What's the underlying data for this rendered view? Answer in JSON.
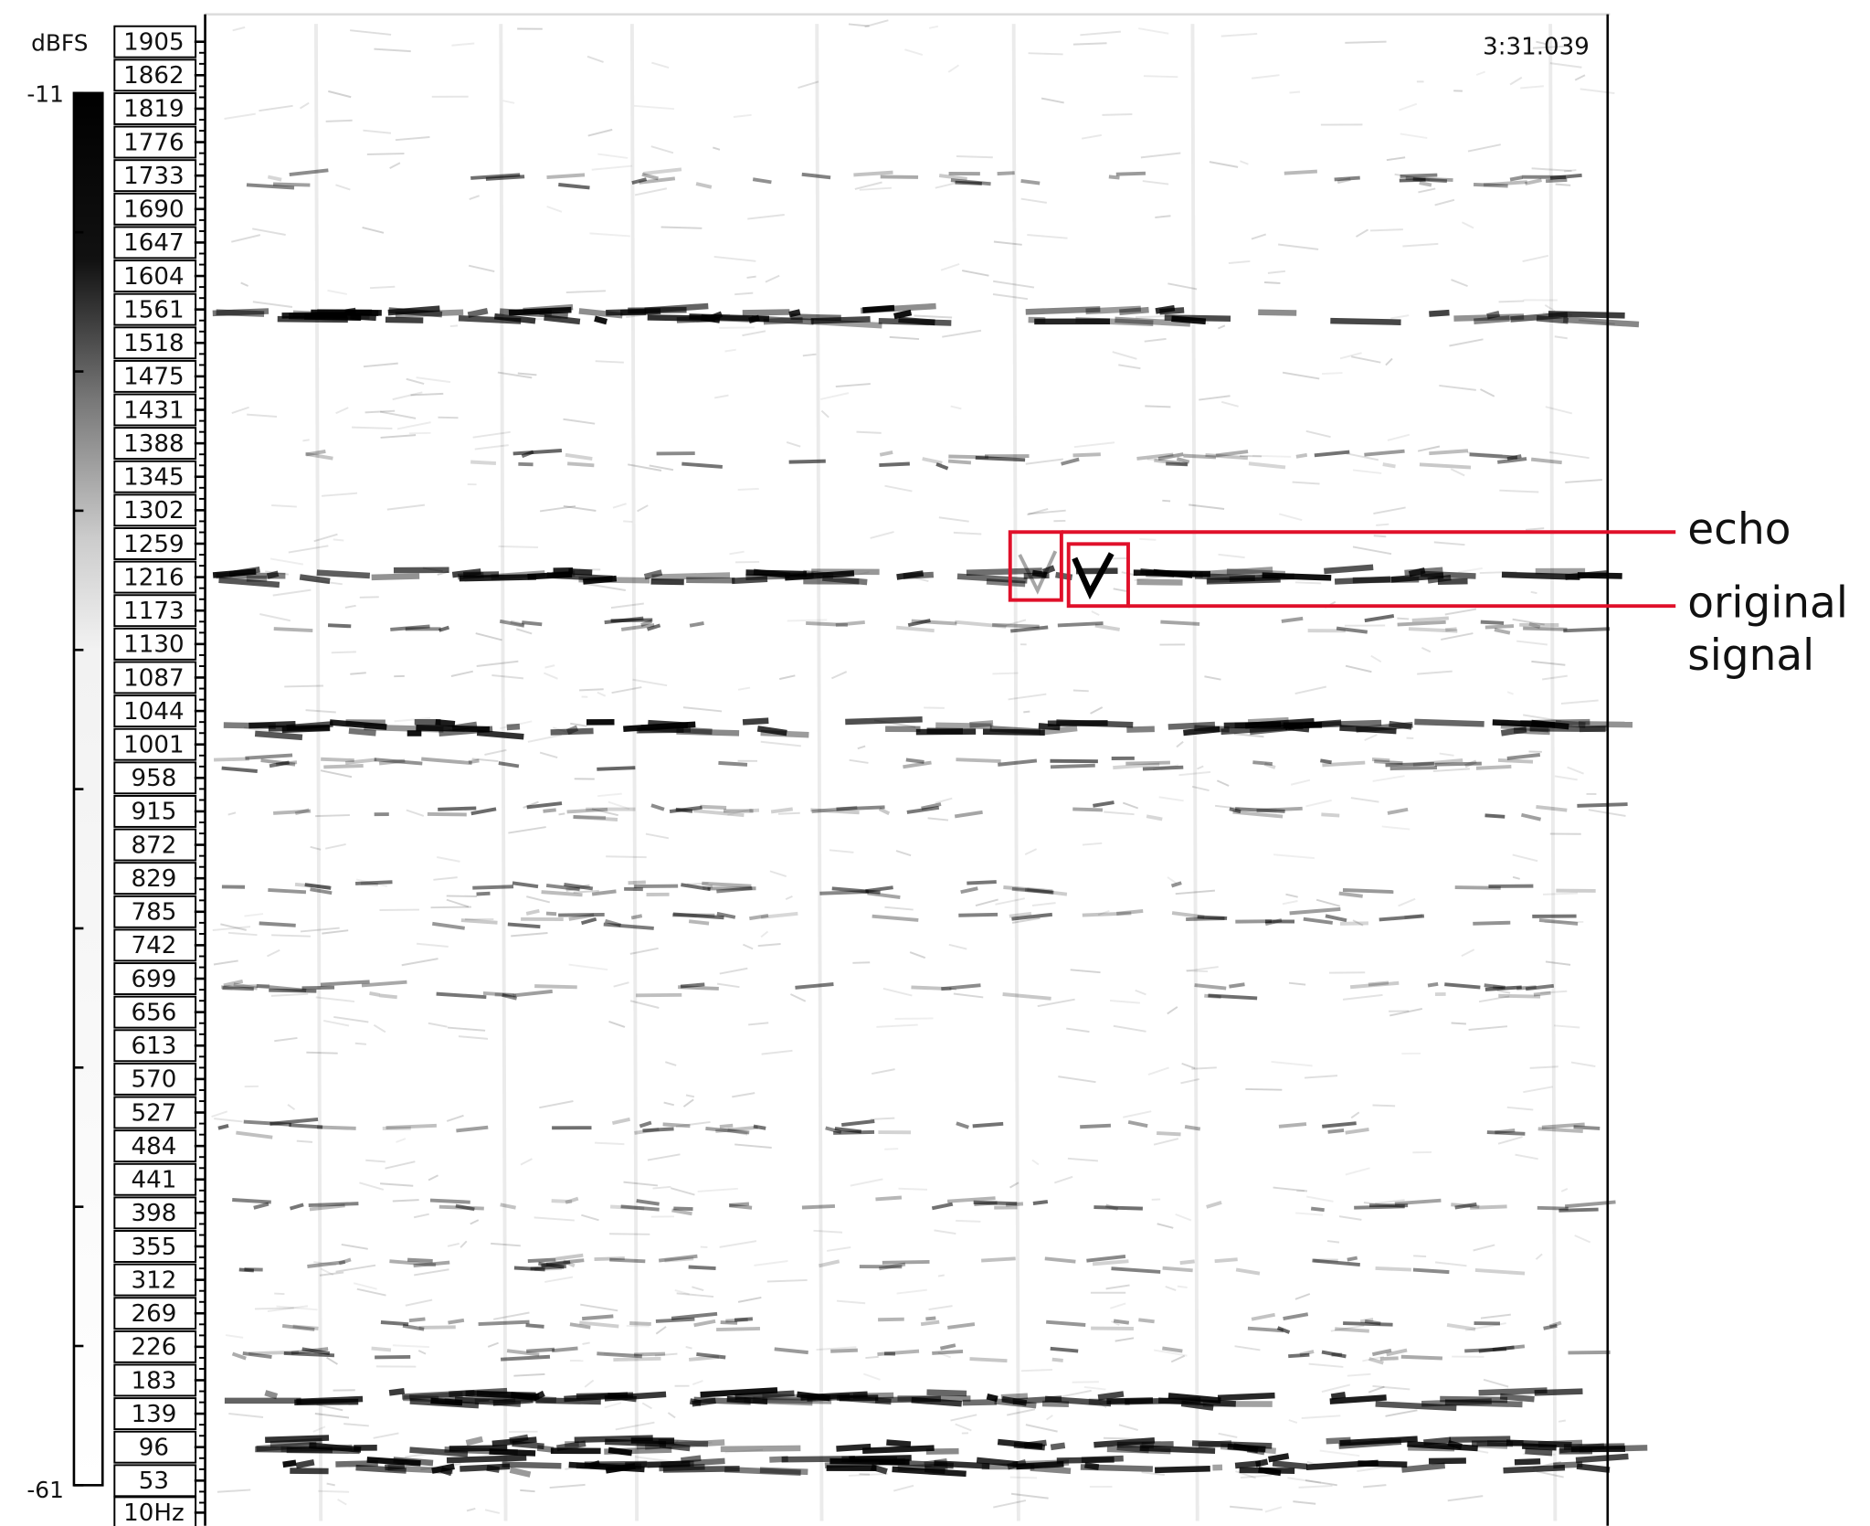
{
  "colorbar": {
    "unit": "dBFS",
    "max_label": "-11",
    "min_label": "-61"
  },
  "frequency_axis": {
    "labels": [
      "1905",
      "1862",
      "1819",
      "1776",
      "1733",
      "1690",
      "1647",
      "1604",
      "1561",
      "1518",
      "1475",
      "1431",
      "1388",
      "1345",
      "1302",
      "1259",
      "1216",
      "1173",
      "1130",
      "1087",
      "1044",
      "1001",
      "958",
      "915",
      "872",
      "829",
      "785",
      "742",
      "699",
      "656",
      "613",
      "570",
      "527",
      "484",
      "441",
      "398",
      "355",
      "312",
      "269",
      "226",
      "183",
      "139",
      "96",
      "53",
      "10Hz"
    ]
  },
  "cursor_time": "3:31.039",
  "annotations": {
    "echo": "echo",
    "original": [
      "original",
      "signal"
    ]
  }
}
